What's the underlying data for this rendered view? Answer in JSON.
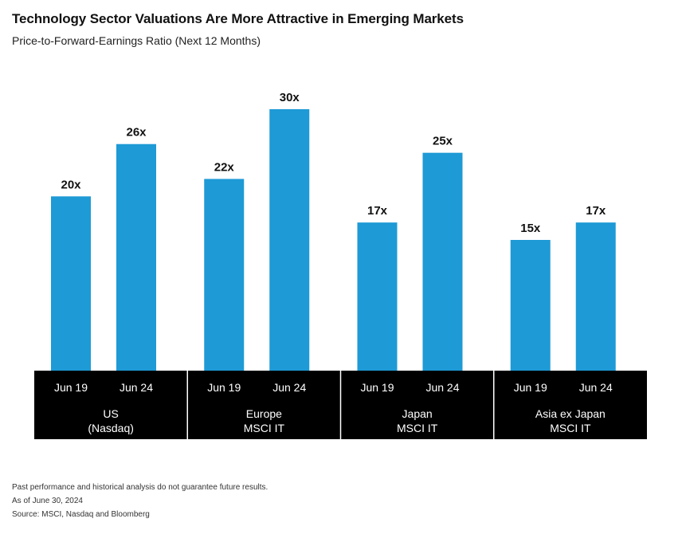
{
  "header": {
    "title": "Technology Sector Valuations Are More Attractive in Emerging Markets",
    "subtitle": "Price-to-Forward-Earnings Ratio (Next 12 Months)"
  },
  "chart_data": {
    "type": "bar",
    "title": "Technology Sector Valuations Are More Attractive in Emerging Markets",
    "subtitle": "Price-to-Forward-Earnings Ratio (Next 12 Months)",
    "bar_color": "#1e9ad6",
    "label_band_color": "#000000",
    "groups": [
      {
        "label_lines": [
          "US",
          "(Nasdaq)"
        ],
        "bars": [
          {
            "period": "Jun 19",
            "value": 20,
            "label": "20x"
          },
          {
            "period": "Jun 24",
            "value": 26,
            "label": "26x"
          }
        ]
      },
      {
        "label_lines": [
          "Europe",
          "MSCI IT"
        ],
        "bars": [
          {
            "period": "Jun 19",
            "value": 22,
            "label": "22x"
          },
          {
            "period": "Jun 24",
            "value": 30,
            "label": "30x"
          }
        ]
      },
      {
        "label_lines": [
          "Japan",
          "MSCI IT"
        ],
        "bars": [
          {
            "period": "Jun 19",
            "value": 17,
            "label": "17x"
          },
          {
            "period": "Jun 24",
            "value": 25,
            "label": "25x"
          }
        ]
      },
      {
        "label_lines": [
          "Asia ex Japan",
          "MSCI IT"
        ],
        "bars": [
          {
            "period": "Jun 19",
            "value": 15,
            "label": "15x"
          },
          {
            "period": "Jun 24",
            "value": 17,
            "label": "17x"
          }
        ]
      }
    ],
    "ylim": [
      0,
      30
    ]
  },
  "footnotes": {
    "disclaimer": "Past performance and historical analysis do not guarantee future results.",
    "as_of": "As of June 30, 2024",
    "source": "Source: MSCI, Nasdaq and Bloomberg"
  }
}
